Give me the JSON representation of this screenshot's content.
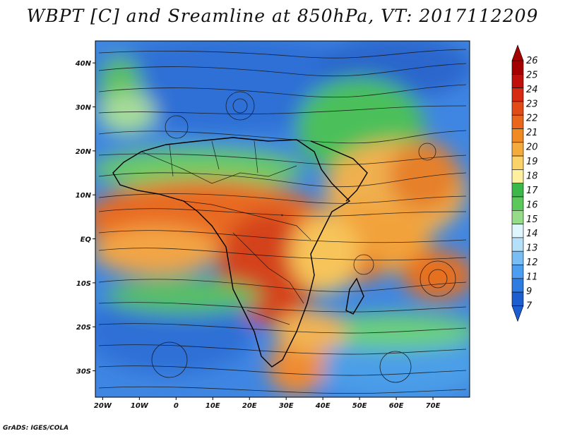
{
  "title": "WBPT [C] and Sreamline at 850hPa, VT: 2017112209",
  "credit": "GrADS: IGES/COLA",
  "map": {
    "lon_range": [
      -22,
      80
    ],
    "lat_range": [
      -36,
      45
    ],
    "lon_ticks": [
      "20W",
      "10W",
      "0",
      "10E",
      "20E",
      "30E",
      "40E",
      "50E",
      "60E",
      "70E"
    ],
    "lat_ticks": [
      "40N",
      "30N",
      "20N",
      "10N",
      "EQ",
      "10S",
      "20S",
      "30S"
    ],
    "field_palette": [
      "#2f6fd6",
      "#3a86e8",
      "#5ea7f2",
      "#a3d2f6",
      "#d8f0ff",
      "#93d88a",
      "#3fbf4e",
      "#ffe88c",
      "#f7c153",
      "#ef9430",
      "#e66a22",
      "#d4431a",
      "#b51c10"
    ]
  },
  "colorbar": {
    "labels": [
      "26",
      "25",
      "24",
      "23",
      "22",
      "21",
      "20",
      "19",
      "18",
      "17",
      "16",
      "15",
      "14",
      "13",
      "12",
      "11",
      "9",
      "7"
    ],
    "colors": [
      "#a50000",
      "#c0100c",
      "#d62a12",
      "#e24a16",
      "#ea661c",
      "#f08a22",
      "#f5aa3c",
      "#fad26a",
      "#fff0a0",
      "#3ab84a",
      "#5ac85a",
      "#96dc88",
      "#e0f6ff",
      "#b4e0fa",
      "#78bef4",
      "#4c9ef0",
      "#2c7ce2",
      "#1c5ed0"
    ]
  }
}
